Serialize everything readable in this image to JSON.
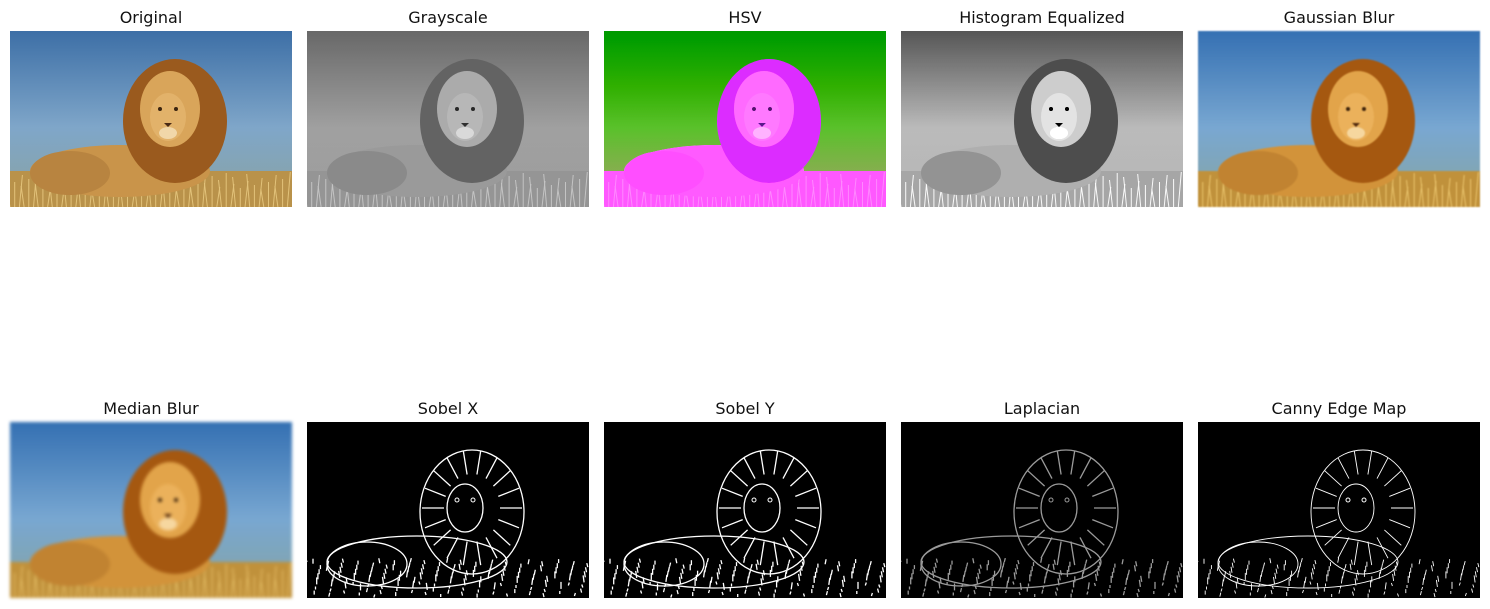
{
  "figure": {
    "panels": [
      {
        "id": "original",
        "title": "Original",
        "filter": "none"
      },
      {
        "id": "grayscale",
        "title": "Grayscale",
        "filter": "grayscale"
      },
      {
        "id": "hsv",
        "title": "HSV",
        "filter": "hsv"
      },
      {
        "id": "histeq",
        "title": "Histogram Equalized",
        "filter": "histeq"
      },
      {
        "id": "gaussian",
        "title": "Gaussian Blur",
        "filter": "blur"
      },
      {
        "id": "median",
        "title": "Median Blur",
        "filter": "blur-strong"
      },
      {
        "id": "sobelx",
        "title": "Sobel X",
        "filter": "edges"
      },
      {
        "id": "sobely",
        "title": "Sobel Y",
        "filter": "edges"
      },
      {
        "id": "laplacian",
        "title": "Laplacian",
        "filter": "edges-dim"
      },
      {
        "id": "canny",
        "title": "Canny Edge Map",
        "filter": "canny"
      }
    ]
  },
  "colors": {
    "sky": "#3d6fa6",
    "sky_light": "#7fa6c9",
    "lion_body": "#c9944a",
    "mane": "#9a5a1e",
    "grass": "#b9924a",
    "edge": "#ffffff",
    "edge_bg": "#000000"
  }
}
